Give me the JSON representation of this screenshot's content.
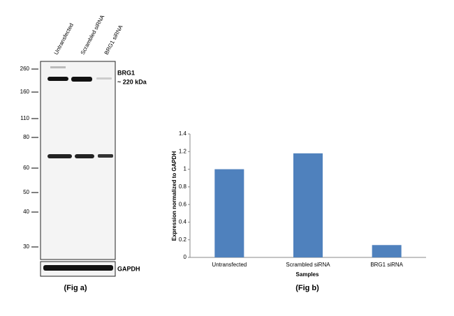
{
  "blot": {
    "lanes": [
      "Untransfected",
      "Scrambled siRNA",
      "BRG1 siRNA"
    ],
    "markers": [
      260,
      160,
      110,
      80,
      60,
      50,
      40,
      30
    ],
    "band_label": "BRG1",
    "band_size": "~ 220 kDa",
    "loading_label": "GAPDH",
    "caption": "(Fig a)"
  },
  "chart_data": {
    "type": "bar",
    "caption": "(Fig b)",
    "x_label": "Samples",
    "y_label": "Expression  normalized to GAPDH",
    "categories": [
      "Untransfected",
      "Scrambled siRNA",
      "BRG1 siRNA"
    ],
    "values": [
      1,
      1.18,
      0.14
    ],
    "color": "#4f81bd",
    "ylim": [
      0,
      1.4
    ],
    "yticks": [
      0,
      0.2,
      0.4,
      0.6,
      0.8,
      1,
      1.2,
      1.4
    ],
    "grid": false
  }
}
